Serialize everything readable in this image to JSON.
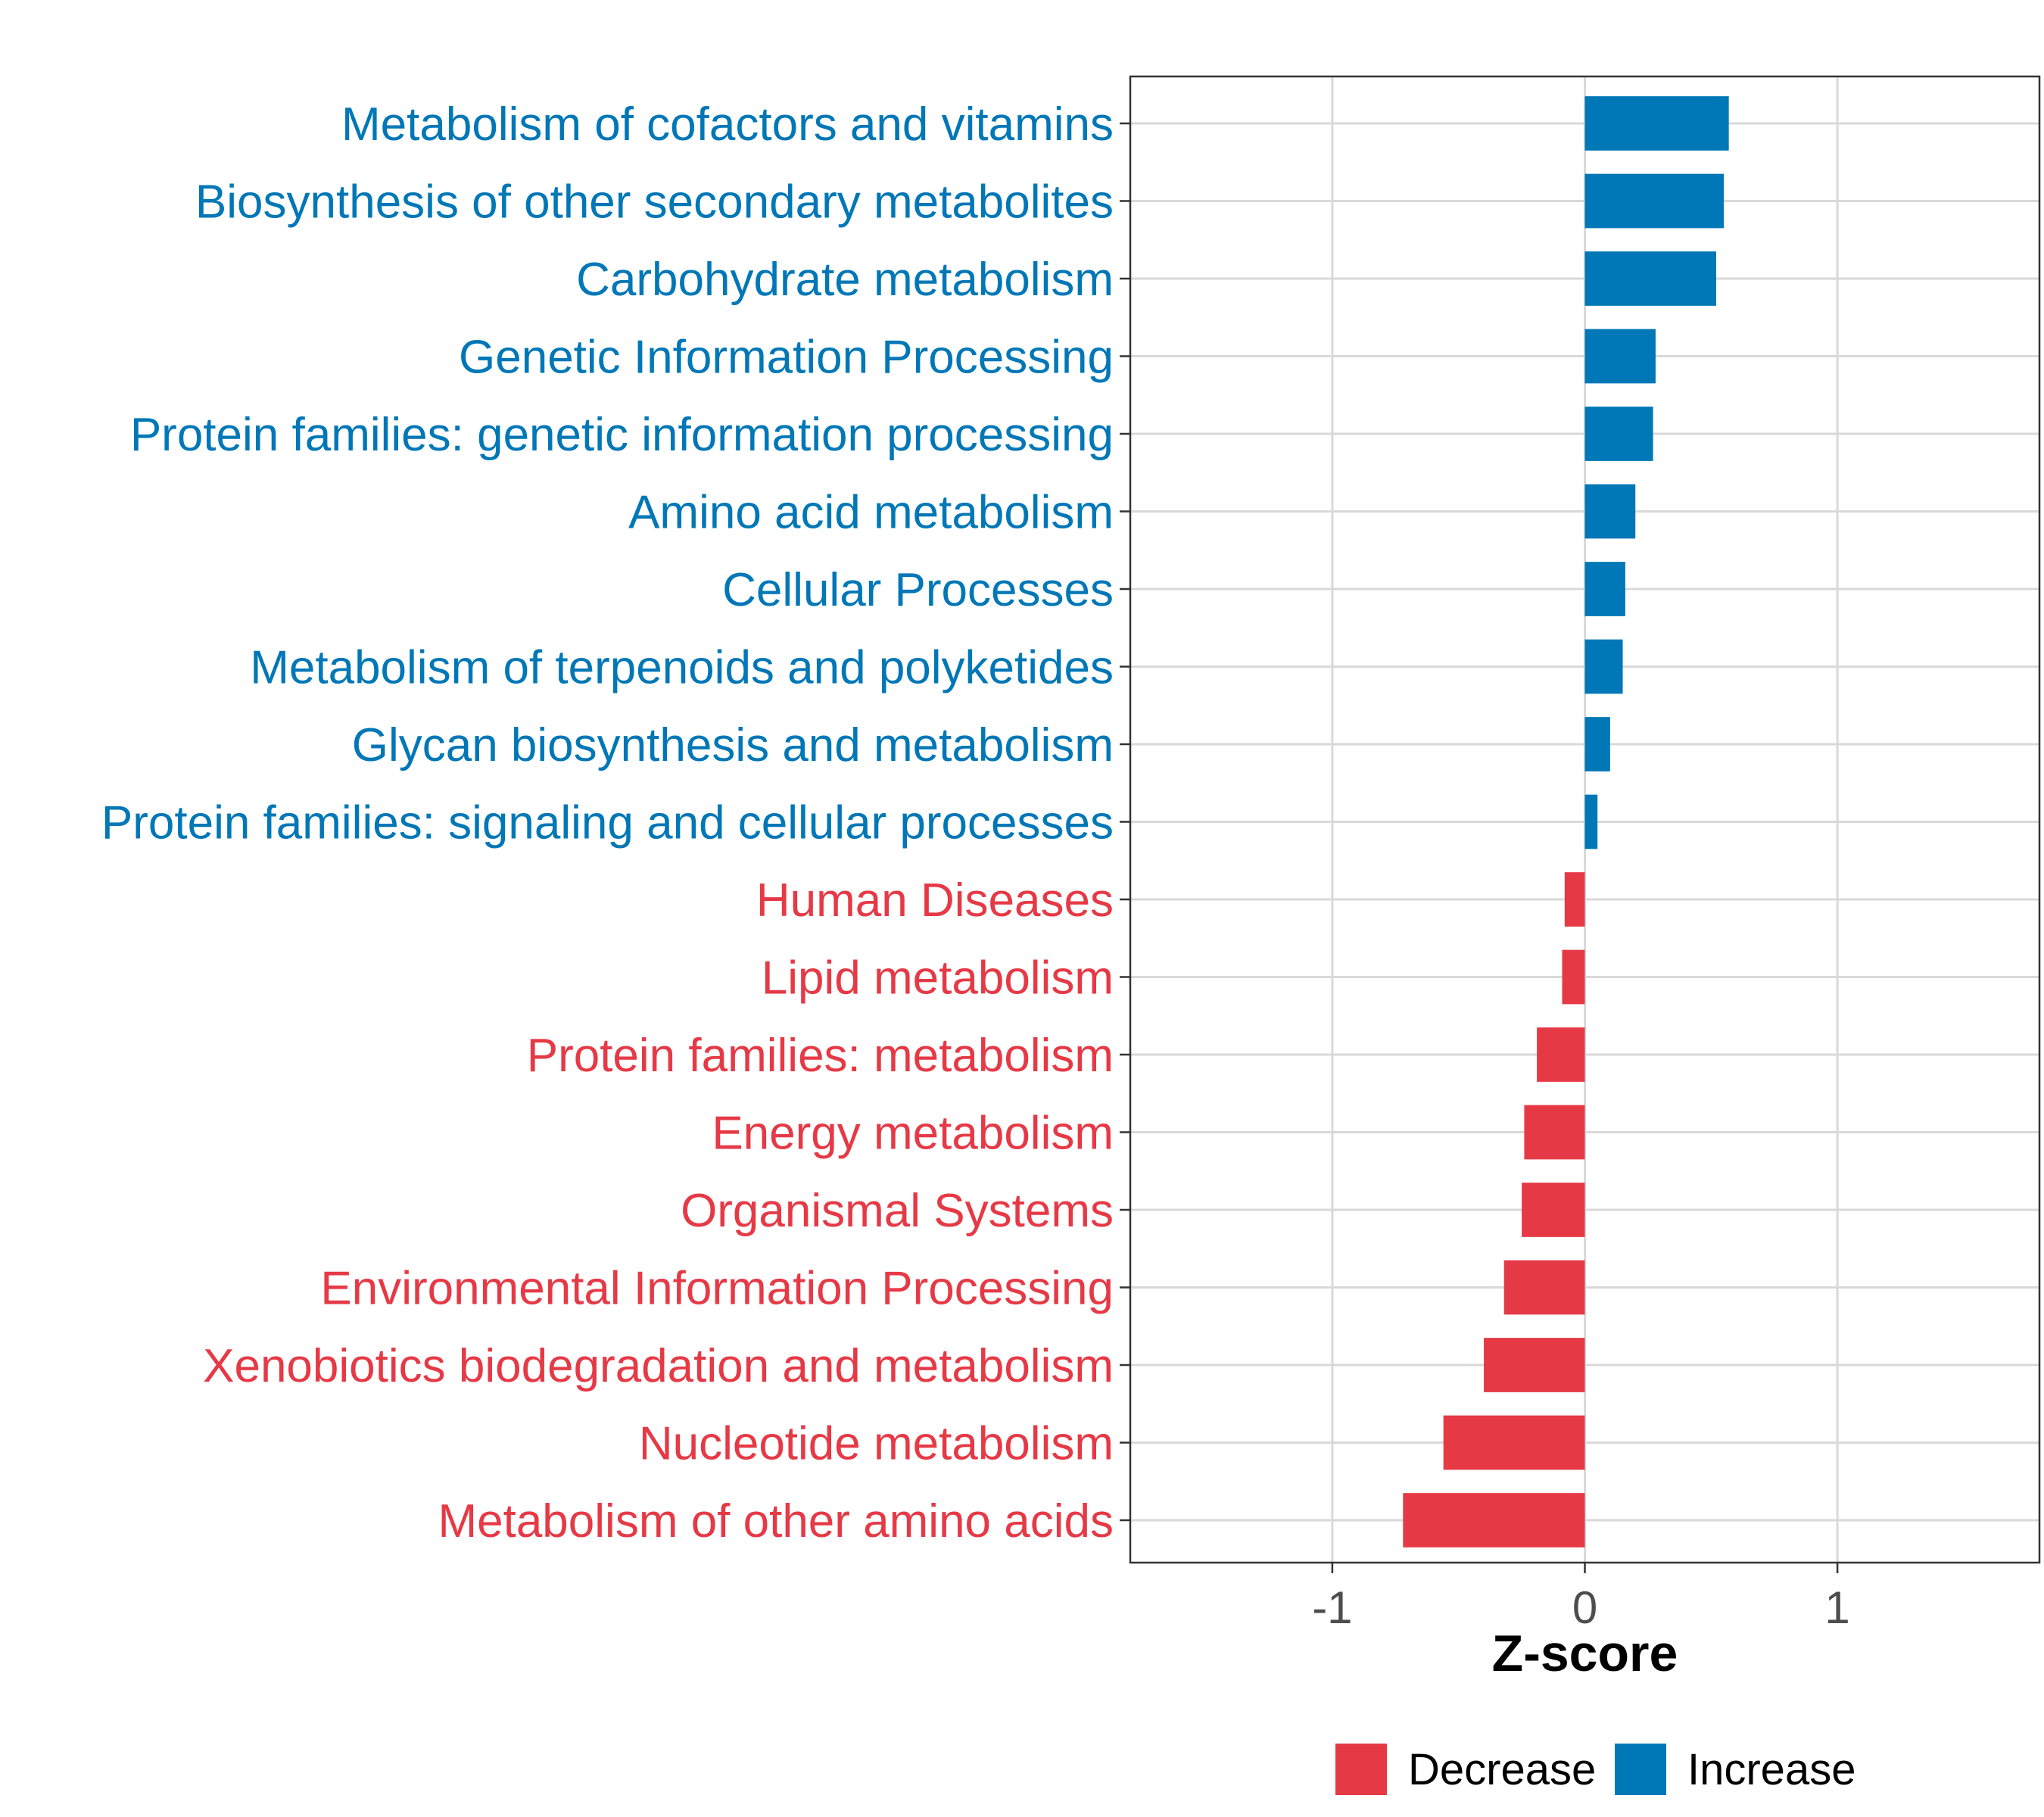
{
  "chart_data": {
    "type": "bar",
    "orientation": "horizontal",
    "title": "",
    "xlabel": "Z-score",
    "ylabel": "",
    "xlim": [
      -1.8,
      1.8
    ],
    "xticks": [
      -1,
      0,
      1
    ],
    "xtick_labels": [
      "-1",
      "0",
      "1"
    ],
    "grid": true,
    "legend_position": "bottom",
    "colors": {
      "Decrease": "#E63946",
      "Increase": "#0077B6"
    },
    "categories": [
      "Metabolism of cofactors and vitamins",
      "Biosynthesis of other secondary metabolites",
      "Carbohydrate metabolism",
      "Genetic Information Processing",
      "Protein families: genetic information processing",
      "Amino acid metabolism",
      "Cellular Processes",
      "Metabolism of terpenoids and polyketides",
      "Glycan biosynthesis and metabolism",
      "Protein families: signaling and cellular processes",
      "Human Diseases",
      "Lipid metabolism",
      "Protein families: metabolism",
      "Energy metabolism",
      "Organismal Systems",
      "Environmental Information Processing",
      "Xenobiotics biodegradation and metabolism",
      "Nucleotide metabolism",
      "Metabolism of other amino acids"
    ],
    "values": [
      0.57,
      0.55,
      0.52,
      0.28,
      0.27,
      0.2,
      0.16,
      0.15,
      0.1,
      0.05,
      -0.08,
      -0.09,
      -0.19,
      -0.24,
      -0.25,
      -0.32,
      -0.4,
      -0.56,
      -0.72
    ],
    "groups": [
      "Increase",
      "Increase",
      "Increase",
      "Increase",
      "Increase",
      "Increase",
      "Increase",
      "Increase",
      "Increase",
      "Increase",
      "Decrease",
      "Decrease",
      "Decrease",
      "Decrease",
      "Decrease",
      "Decrease",
      "Decrease",
      "Decrease",
      "Decrease"
    ],
    "legend": [
      {
        "label": "Decrease",
        "color": "#E63946"
      },
      {
        "label": "Increase",
        "color": "#0077B6"
      }
    ]
  }
}
